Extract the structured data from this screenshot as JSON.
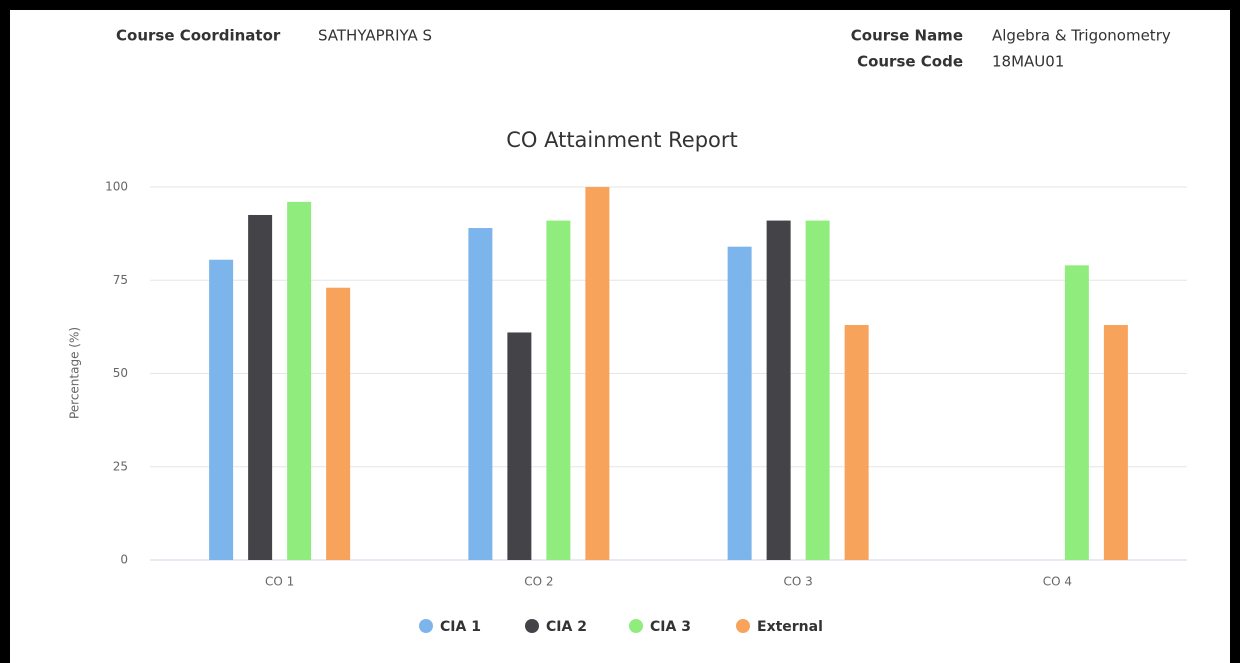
{
  "header": {
    "coordinator_label": "Course Coordinator",
    "coordinator": "SATHYAPRIYA S",
    "course_name_label": "Course Name",
    "course_name": "Algebra & Trigonometry",
    "course_code_label": "Course Code",
    "course_code": "18MAU01"
  },
  "chart_data": {
    "type": "bar",
    "title": "CO Attainment Report",
    "y_label": "Percentage (%)",
    "categories": [
      "CO 1",
      "CO 2",
      "CO 3",
      "CO 4"
    ],
    "series": [
      {
        "name": "CIA 1",
        "color": "#7cb5ec",
        "values": [
          80.5,
          89,
          84,
          null
        ]
      },
      {
        "name": "CIA 2",
        "color": "#434348",
        "values": [
          92.5,
          61,
          91,
          null
        ]
      },
      {
        "name": "CIA 3",
        "color": "#90ed7d",
        "values": [
          96,
          91,
          91,
          79
        ]
      },
      {
        "name": "External",
        "color": "#f7a35c",
        "values": [
          73,
          100,
          63,
          63
        ]
      }
    ],
    "ylim": [
      0,
      100
    ],
    "yticks": [
      0,
      25,
      50,
      75,
      100
    ],
    "grid": true
  }
}
